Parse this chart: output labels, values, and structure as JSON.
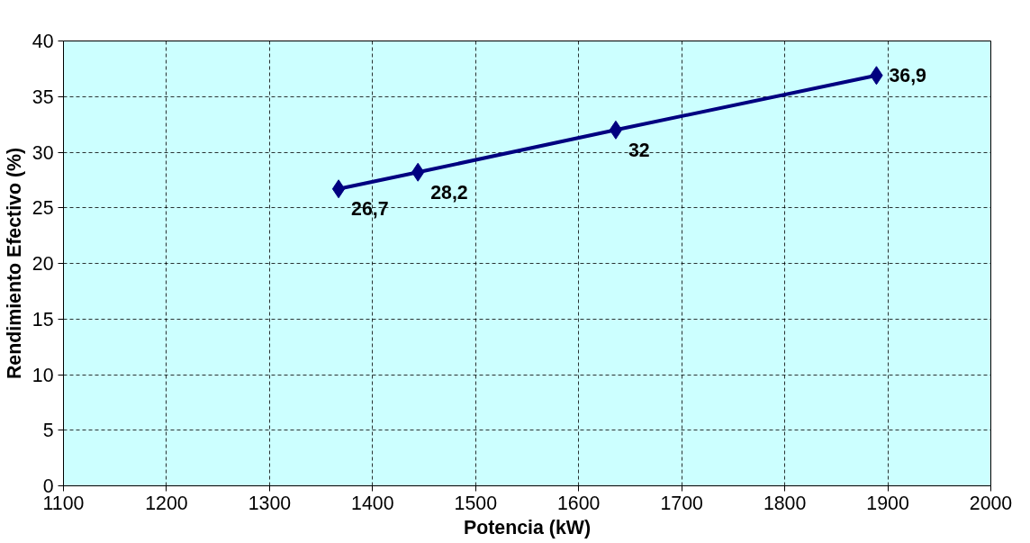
{
  "chart_data": {
    "type": "line",
    "xlabel": "Potencia (kW)",
    "ylabel": "Rendimiento Efectivo (%)",
    "x": [
      1367,
      1444,
      1636,
      1889
    ],
    "series": [
      {
        "color": "#000080",
        "values": [
          26.7,
          28.2,
          32,
          36.9
        ],
        "value_labels": [
          "26,7",
          "28,2",
          "32",
          "36,9"
        ]
      }
    ],
    "xlim": [
      1100,
      2000
    ],
    "xticks": [
      1100,
      1200,
      1300,
      1400,
      1500,
      1600,
      1700,
      1800,
      1900,
      2000
    ],
    "ylim": [
      0,
      40
    ],
    "yticks": [
      0,
      5,
      10,
      15,
      20,
      25,
      30,
      35,
      40
    ],
    "grid": true,
    "marker": "diamond",
    "line_style": "solid"
  }
}
